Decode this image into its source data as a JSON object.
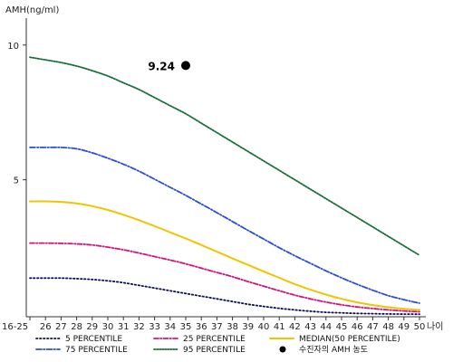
{
  "chart_data": {
    "type": "line",
    "ylabel": "AMH(ng/ml)",
    "xlabel": "나이",
    "ylim": [
      0,
      11
    ],
    "yticks": [
      5,
      10
    ],
    "x": [
      "16-25",
      "26",
      "27",
      "28",
      "29",
      "30",
      "31",
      "32",
      "33",
      "34",
      "35",
      "36",
      "37",
      "38",
      "39",
      "40",
      "41",
      "42",
      "43",
      "44",
      "45",
      "46",
      "47",
      "48",
      "49",
      "50"
    ],
    "series": [
      {
        "name": "5 PERCENTILE",
        "color": "#0d0d5c",
        "dash": "1.5,2.5",
        "values": [
          1.35,
          1.35,
          1.35,
          1.33,
          1.3,
          1.25,
          1.18,
          1.08,
          0.98,
          0.88,
          0.78,
          0.68,
          0.58,
          0.48,
          0.38,
          0.3,
          0.23,
          0.17,
          0.12,
          0.08,
          0.06,
          0.04,
          0.03,
          0.02,
          0.015,
          0.01
        ]
      },
      {
        "name": "25 PERCENTILE",
        "color": "#d4147c",
        "dash": "5,2,1.5,2",
        "values": [
          2.65,
          2.65,
          2.64,
          2.62,
          2.58,
          2.5,
          2.4,
          2.28,
          2.15,
          2.02,
          1.88,
          1.72,
          1.56,
          1.4,
          1.22,
          1.05,
          0.88,
          0.72,
          0.58,
          0.46,
          0.36,
          0.28,
          0.22,
          0.17,
          0.13,
          0.1
        ]
      },
      {
        "name": "MEDIAN(50 PERCENTILE)",
        "color": "#f2c400",
        "dash": "",
        "values": [
          4.2,
          4.2,
          4.18,
          4.12,
          4.02,
          3.88,
          3.7,
          3.5,
          3.28,
          3.05,
          2.82,
          2.58,
          2.33,
          2.08,
          1.84,
          1.6,
          1.36,
          1.13,
          0.92,
          0.74,
          0.58,
          0.45,
          0.35,
          0.27,
          0.21,
          0.17
        ]
      },
      {
        "name": "75 PERCENTILE",
        "color": "#2a4fd6",
        "dash": "6,2,1.5,2",
        "values": [
          6.2,
          6.2,
          6.2,
          6.15,
          6.0,
          5.8,
          5.58,
          5.32,
          5.02,
          4.72,
          4.42,
          4.1,
          3.78,
          3.45,
          3.12,
          2.8,
          2.48,
          2.18,
          1.9,
          1.62,
          1.36,
          1.12,
          0.9,
          0.7,
          0.55,
          0.42
        ]
      },
      {
        "name": "95 PERCENTILE",
        "color": "#1a6e3c",
        "dash": "1.5,1.5",
        "values": [
          9.55,
          9.45,
          9.35,
          9.22,
          9.05,
          8.85,
          8.6,
          8.35,
          8.05,
          7.75,
          7.45,
          7.1,
          6.75,
          6.4,
          6.05,
          5.7,
          5.35,
          5.0,
          4.65,
          4.3,
          3.95,
          3.6,
          3.25,
          2.9,
          2.55,
          2.2
        ]
      }
    ],
    "marker": {
      "x": "35",
      "y": 9.24,
      "label": "9.24",
      "legend": "수진자의 AMH 농도"
    },
    "legend_position": "bottom"
  }
}
